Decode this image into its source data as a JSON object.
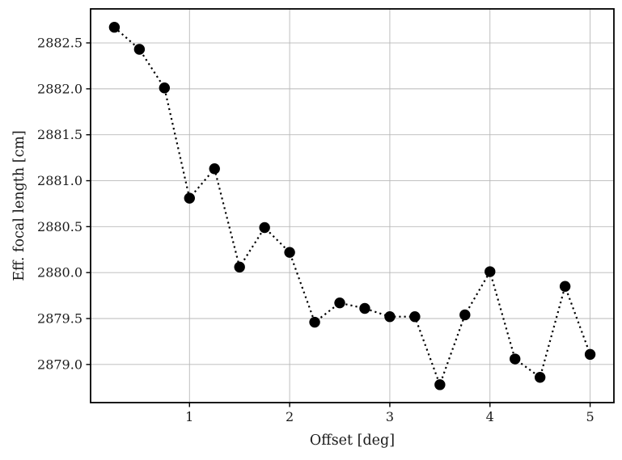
{
  "chart_data": {
    "type": "line",
    "title": "",
    "xlabel": "Offset [deg]",
    "ylabel": "Eff. focal length [cm]",
    "x": [
      0.25,
      0.5,
      0.75,
      1.0,
      1.25,
      1.5,
      1.75,
      2.0,
      2.25,
      2.5,
      2.75,
      3.0,
      3.25,
      3.5,
      3.75,
      4.0,
      4.25,
      4.5,
      4.75,
      5.0
    ],
    "y": [
      2882.67,
      2882.43,
      2882.01,
      2880.81,
      2881.13,
      2880.06,
      2880.49,
      2880.22,
      2879.46,
      2879.67,
      2879.61,
      2879.52,
      2879.52,
      2878.78,
      2879.54,
      2880.01,
      2879.06,
      2878.86,
      2879.85,
      2879.11
    ],
    "xlim": [
      0.0125,
      5.2375
    ],
    "ylim": [
      2878.585,
      2882.87
    ],
    "xticks": [
      1,
      2,
      3,
      4,
      5
    ],
    "xtick_labels": [
      "1",
      "2",
      "3",
      "4",
      "5"
    ],
    "yticks": [
      2879.0,
      2879.5,
      2880.0,
      2880.5,
      2881.0,
      2881.5,
      2882.0,
      2882.5
    ],
    "ytick_labels": [
      "2879.0",
      "2879.5",
      "2880.0",
      "2880.5",
      "2881.0",
      "2881.5",
      "2882.0",
      "2882.5"
    ],
    "grid": true,
    "legend": false,
    "line_style": "dotted",
    "marker": "circle",
    "colors": {
      "series": "#000000",
      "grid": "#b8b8b8",
      "spine": "#000000",
      "background": "#ffffff"
    }
  }
}
